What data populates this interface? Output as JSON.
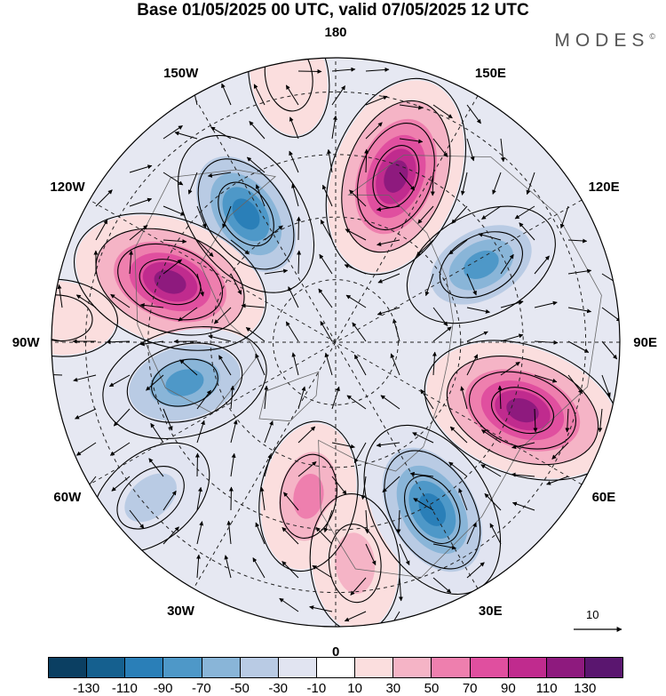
{
  "title": "Base 01/05/2025 00 UTC, valid 07/05/2025 12 UTC",
  "brand": "MODES",
  "brand_mark": "©",
  "map": {
    "projection": "north-polar-stereographic",
    "graticule": "dashed",
    "longitude_labels": [
      {
        "text": "180",
        "lon": 180
      },
      {
        "text": "150E",
        "lon": 150
      },
      {
        "text": "120E",
        "lon": 120
      },
      {
        "text": "90E",
        "lon": 90
      },
      {
        "text": "60E",
        "lon": 60
      },
      {
        "text": "30E",
        "lon": 30
      },
      {
        "text": "0",
        "lon": 0
      },
      {
        "text": "30W",
        "lon": -30
      },
      {
        "text": "60W",
        "lon": -60
      },
      {
        "text": "90W",
        "lon": -90
      },
      {
        "text": "120W",
        "lon": -120
      },
      {
        "text": "150W",
        "lon": -150
      }
    ],
    "anomaly_centers": [
      {
        "lon": 160,
        "dist": 0.62,
        "value": 125,
        "sign": "positive"
      },
      {
        "lon": -145,
        "dist": 0.55,
        "value": -90,
        "sign": "negative"
      },
      {
        "lon": -110,
        "dist": 0.62,
        "value": 120,
        "sign": "positive"
      },
      {
        "lon": -75,
        "dist": 0.55,
        "value": -80,
        "sign": "negative"
      },
      {
        "lon": -10,
        "dist": 0.55,
        "value": 60,
        "sign": "positive"
      },
      {
        "lon": 5,
        "dist": 0.78,
        "value": 45,
        "sign": "positive"
      },
      {
        "lon": 30,
        "dist": 0.68,
        "value": -100,
        "sign": "negative"
      },
      {
        "lon": 70,
        "dist": 0.7,
        "value": 125,
        "sign": "positive"
      },
      {
        "lon": 118,
        "dist": 0.58,
        "value": -70,
        "sign": "negative"
      },
      {
        "lon": -50,
        "dist": 0.85,
        "value": -40,
        "sign": "negative"
      },
      {
        "lon": -170,
        "dist": 0.95,
        "value": 25,
        "sign": "positive"
      },
      {
        "lon": -95,
        "dist": 0.98,
        "value": 20,
        "sign": "positive"
      }
    ],
    "reference_vector": "10"
  },
  "colorbar": {
    "ticks": [
      "-130",
      "-110",
      "-90",
      "-70",
      "-50",
      "-30",
      "-10",
      "10",
      "30",
      "50",
      "70",
      "90",
      "110",
      "130"
    ],
    "colors": [
      "#0b3f62",
      "#15608f",
      "#2a7fb8",
      "#4e98c8",
      "#89b5d8",
      "#b9cbe4",
      "#e1e4f1",
      "#ffffff",
      "#fbdede",
      "#f5b4c6",
      "#ee7fae",
      "#e04f9f",
      "#c02b8e",
      "#8e1a7e",
      "#5a166f"
    ]
  }
}
